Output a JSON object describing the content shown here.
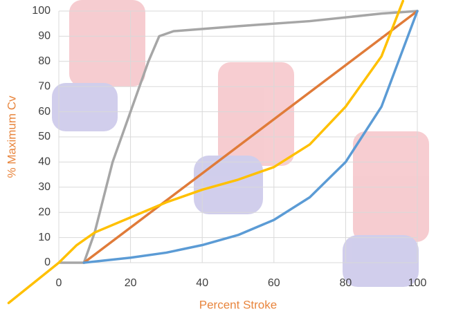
{
  "chart_data": {
    "type": "line",
    "x_label": "Percent Stroke",
    "y_label": "% Maximum Cv",
    "xlim": [
      0,
      100
    ],
    "ylim": [
      0,
      100
    ],
    "xticks": [
      0,
      20,
      40,
      60,
      80,
      100
    ],
    "yticks": [
      0,
      10,
      20,
      30,
      40,
      50,
      60,
      70,
      80,
      90,
      100
    ],
    "grid": true,
    "series": [
      {
        "color": "#a6a6a6",
        "x": [
          0,
          7,
          10,
          15,
          20,
          25,
          28,
          32,
          50,
          70,
          90,
          100
        ],
        "values": [
          0,
          0,
          12,
          40,
          60,
          80,
          90,
          92,
          94,
          96,
          99,
          100
        ]
      },
      {
        "color": "#e07b39",
        "x": [
          7,
          100
        ],
        "values": [
          0,
          100
        ]
      },
      {
        "color": "#5b9bd5",
        "x": [
          7,
          20,
          30,
          40,
          50,
          60,
          70,
          80,
          90,
          100
        ],
        "values": [
          0,
          2,
          4,
          7,
          11,
          17,
          26,
          40,
          62,
          100
        ]
      },
      {
        "color": "#ffc000",
        "x": [
          -14,
          0,
          5,
          10,
          20,
          30,
          40,
          50,
          60,
          70,
          80,
          90,
          96
        ],
        "values": [
          -16,
          0,
          7,
          12,
          18,
          24,
          29,
          33,
          38,
          47,
          62,
          82,
          104
        ]
      }
    ]
  }
}
